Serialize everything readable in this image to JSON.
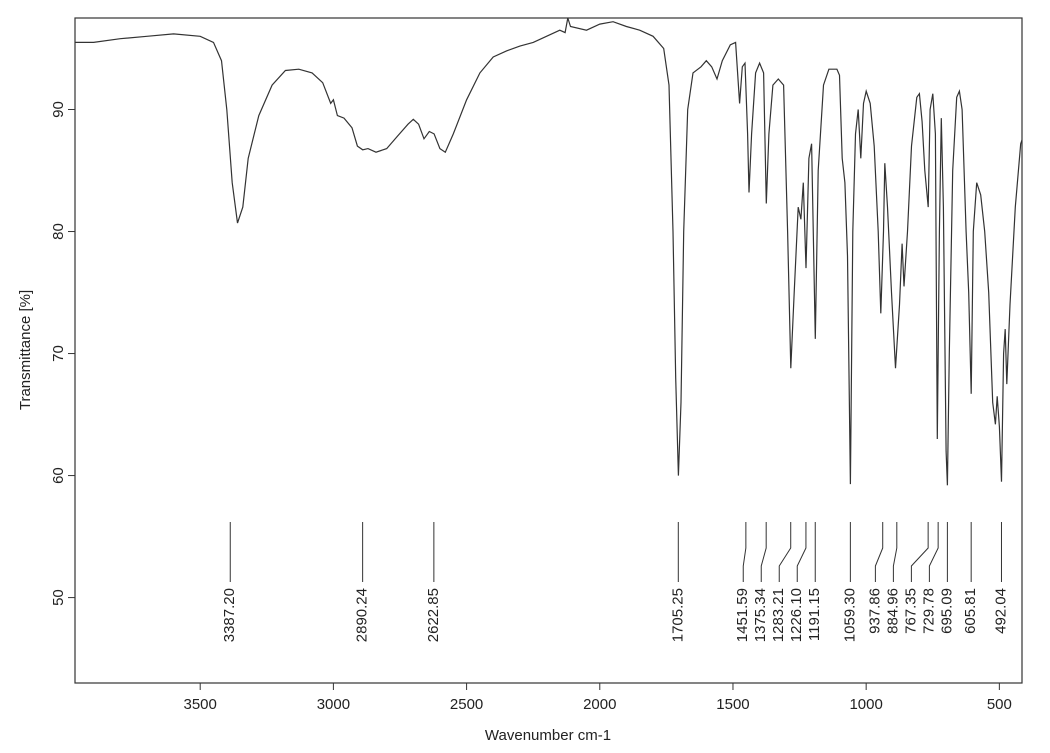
{
  "chart_data": {
    "type": "line",
    "xlabel": "Wavenumber cm-1",
    "ylabel": "Transmittance [%]",
    "xlim": [
      3970,
      415
    ],
    "ylim": [
      43,
      97.5
    ],
    "xticks": [
      3500,
      3000,
      2500,
      2000,
      1500,
      1000,
      500
    ],
    "yticks": [
      50,
      60,
      70,
      80,
      90
    ],
    "series": [
      {
        "color": "#333333",
        "x": [
          3970,
          3900,
          3800,
          3700,
          3600,
          3500,
          3450,
          3420,
          3400,
          3380,
          3360,
          3340,
          3320,
          3280,
          3230,
          3180,
          3130,
          3080,
          3040,
          3010,
          3000,
          2985,
          2960,
          2930,
          2910,
          2890,
          2870,
          2840,
          2800,
          2760,
          2720,
          2700,
          2680,
          2660,
          2640,
          2622,
          2600,
          2580,
          2550,
          2500,
          2450,
          2400,
          2350,
          2300,
          2250,
          2200,
          2150,
          2130,
          2120,
          2110,
          2050,
          2000,
          1950,
          1900,
          1850,
          1800,
          1760,
          1740,
          1725,
          1715,
          1705,
          1695,
          1685,
          1670,
          1650,
          1620,
          1600,
          1580,
          1560,
          1540,
          1510,
          1490,
          1475,
          1465,
          1455,
          1445,
          1440,
          1430,
          1415,
          1400,
          1385,
          1375,
          1365,
          1350,
          1330,
          1310,
          1295,
          1283,
          1270,
          1255,
          1245,
          1236,
          1226,
          1215,
          1205,
          1191,
          1180,
          1160,
          1140,
          1110,
          1100,
          1090,
          1080,
          1070,
          1059,
          1050,
          1040,
          1030,
          1020,
          1010,
          1000,
          985,
          970,
          955,
          945,
          935,
          930,
          920,
          905,
          890,
          875,
          865,
          858,
          845,
          830,
          810,
          800,
          790,
          780,
          767,
          760,
          750,
          740,
          733,
          725,
          718,
          710,
          700,
          695,
          688,
          675,
          660,
          650,
          640,
          625,
          615,
          605.8,
          598,
          585,
          570,
          555,
          540,
          525,
          515,
          508,
          500,
          492,
          484,
          478,
          472,
          460,
          440,
          420,
          415
        ],
        "values": [
          95.5,
          95.5,
          95.8,
          96.0,
          96.2,
          96.0,
          95.5,
          94,
          90,
          84,
          80.7,
          82,
          86,
          89.5,
          92,
          93.2,
          93.3,
          93,
          92.2,
          90.5,
          90.8,
          89.5,
          89.3,
          88.5,
          87,
          86.7,
          86.8,
          86.5,
          86.8,
          87.8,
          88.8,
          89.2,
          88.8,
          87.6,
          88.2,
          88,
          86.8,
          86.5,
          88,
          90.8,
          93,
          94.3,
          94.8,
          95.2,
          95.5,
          96.0,
          96.5,
          96.3,
          97.5,
          96.8,
          96.5,
          97,
          97.2,
          96.8,
          96.5,
          96,
          95,
          92,
          80,
          68,
          60,
          66,
          80,
          90,
          93,
          93.5,
          94,
          93.5,
          92.5,
          94,
          95.3,
          95.5,
          90.5,
          93.5,
          93.8,
          88,
          83.2,
          88,
          93,
          93.8,
          93,
          82.3,
          88,
          92,
          92.5,
          92,
          80,
          68.8,
          75,
          82,
          81,
          84,
          77,
          86,
          87.2,
          71.2,
          85,
          92,
          93.3,
          93.3,
          92.8,
          86,
          84,
          78,
          59.3,
          80,
          88,
          90,
          86,
          90.5,
          91.5,
          90.5,
          87,
          80,
          73.3,
          80,
          85.6,
          82,
          75,
          68.8,
          74,
          79,
          75.5,
          80,
          87,
          91,
          91.3,
          89,
          85,
          82,
          90,
          91.3,
          88,
          63,
          80,
          89.3,
          82,
          62,
          59.2,
          70,
          85,
          91,
          91.5,
          90,
          80,
          75,
          66.7,
          80,
          84,
          83,
          80,
          75,
          66,
          64.2,
          66.5,
          64,
          59.5,
          70,
          72,
          67.5,
          74,
          82,
          87.2,
          87.5
        ]
      }
    ],
    "annotations": [
      {
        "value": 3387.2,
        "label": "3387.20"
      },
      {
        "value": 2890.24,
        "label": "2890.24"
      },
      {
        "value": 2622.85,
        "label": "2622.85"
      },
      {
        "value": 1705.25,
        "label": "1705.25"
      },
      {
        "value": 1451.59,
        "label": "1451.59"
      },
      {
        "value": 1375.34,
        "label": "1375.34"
      },
      {
        "value": 1283.21,
        "label": "1283.21"
      },
      {
        "value": 1226.1,
        "label": "1226.10"
      },
      {
        "value": 1191.15,
        "label": "1191.15"
      },
      {
        "value": 1059.3,
        "label": "1059.30"
      },
      {
        "value": 937.86,
        "label": "937.86"
      },
      {
        "value": 884.96,
        "label": "884.96"
      },
      {
        "value": 767.35,
        "label": "767.35"
      },
      {
        "value": 729.78,
        "label": "729.78"
      },
      {
        "value": 695.09,
        "label": "695.09"
      },
      {
        "value": 605.81,
        "label": "605.81"
      },
      {
        "value": 492.04,
        "label": "492.04"
      }
    ]
  }
}
